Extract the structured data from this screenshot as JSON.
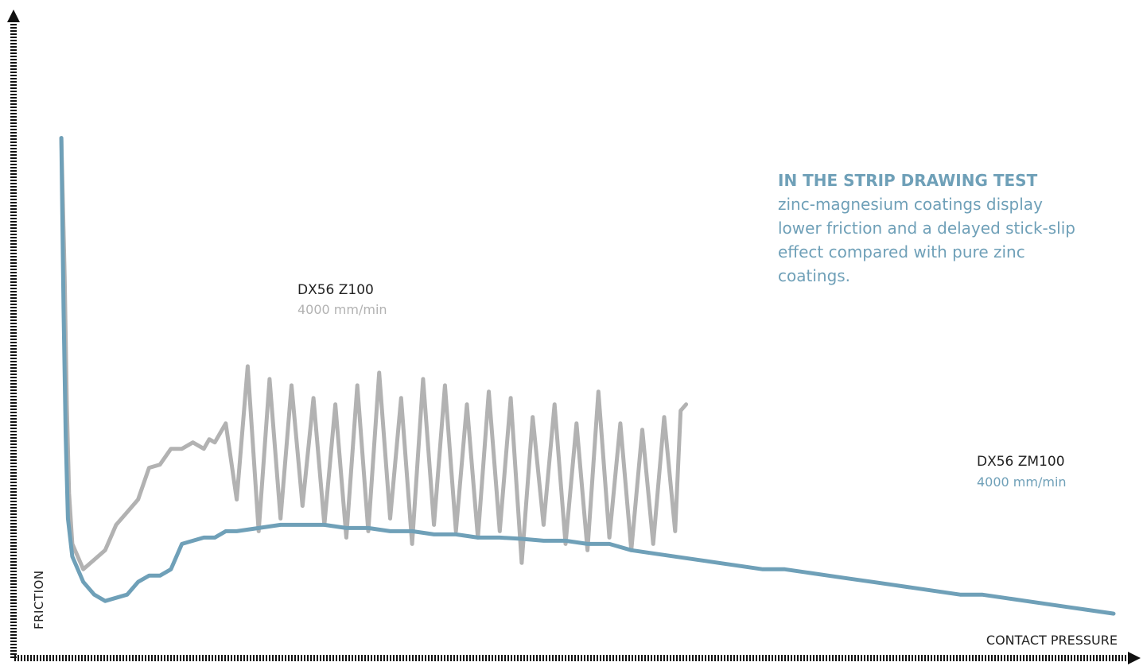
{
  "colors": {
    "zinc": "#b2b2b2",
    "zinc_magnesium": "#6fa0b8",
    "annotation": "#6fa0b8",
    "axis": "#111111"
  },
  "annotation": {
    "title": "IN THE STRIP DRAWING TEST",
    "body": "zinc-magnesium coatings display lower friction and a delayed stick-slip effect compared with pure zinc coatings."
  },
  "chart_data": {
    "type": "line",
    "xlabel": "CONTACT PRESSURE",
    "ylabel": "FRICTION",
    "x_ticks": "none",
    "y_ticks": "none",
    "grid": false,
    "series": [
      {
        "name": "DX56 Z100",
        "speed": "4000 mm/min",
        "color": "#b2b2b2",
        "x": [
          0.04,
          0.043,
          0.045,
          0.047,
          0.05,
          0.06,
          0.07,
          0.08,
          0.09,
          0.1,
          0.11,
          0.12,
          0.13,
          0.14,
          0.15,
          0.16,
          0.17,
          0.175,
          0.18,
          0.19,
          0.2,
          0.21,
          0.22,
          0.23,
          0.24,
          0.25,
          0.26,
          0.27,
          0.28,
          0.29,
          0.3,
          0.31,
          0.32,
          0.33,
          0.34,
          0.35,
          0.36,
          0.37,
          0.38,
          0.39,
          0.4,
          0.41,
          0.42,
          0.43,
          0.44,
          0.45,
          0.46,
          0.47,
          0.48,
          0.49,
          0.5,
          0.51,
          0.52,
          0.53,
          0.54,
          0.55,
          0.56,
          0.57,
          0.58,
          0.59,
          0.6,
          0.605,
          0.61
        ],
        "y": [
          0.82,
          0.6,
          0.4,
          0.26,
          0.18,
          0.14,
          0.155,
          0.17,
          0.21,
          0.23,
          0.25,
          0.3,
          0.305,
          0.33,
          0.33,
          0.34,
          0.33,
          0.345,
          0.34,
          0.37,
          0.25,
          0.46,
          0.2,
          0.44,
          0.22,
          0.43,
          0.24,
          0.41,
          0.21,
          0.4,
          0.19,
          0.43,
          0.2,
          0.45,
          0.22,
          0.41,
          0.18,
          0.44,
          0.21,
          0.43,
          0.2,
          0.4,
          0.19,
          0.42,
          0.2,
          0.41,
          0.15,
          0.38,
          0.21,
          0.4,
          0.18,
          0.37,
          0.17,
          0.42,
          0.19,
          0.37,
          0.17,
          0.36,
          0.18,
          0.38,
          0.2,
          0.39,
          0.4
        ]
      },
      {
        "name": "DX56 ZM100",
        "speed": "4000 mm/min",
        "color": "#6fa0b8",
        "x": [
          0.04,
          0.042,
          0.044,
          0.046,
          0.05,
          0.06,
          0.07,
          0.08,
          0.09,
          0.1,
          0.11,
          0.12,
          0.13,
          0.14,
          0.15,
          0.16,
          0.17,
          0.18,
          0.19,
          0.2,
          0.22,
          0.24,
          0.26,
          0.28,
          0.3,
          0.32,
          0.34,
          0.36,
          0.38,
          0.4,
          0.42,
          0.44,
          0.46,
          0.48,
          0.5,
          0.52,
          0.54,
          0.56,
          0.58,
          0.6,
          0.62,
          0.64,
          0.66,
          0.68,
          0.7,
          0.72,
          0.74,
          0.76,
          0.78,
          0.8,
          0.82,
          0.84,
          0.86,
          0.88,
          0.9,
          0.92,
          0.94,
          0.96,
          0.98,
          1.0
        ],
        "y": [
          0.82,
          0.55,
          0.35,
          0.22,
          0.16,
          0.12,
          0.1,
          0.09,
          0.095,
          0.1,
          0.12,
          0.13,
          0.13,
          0.14,
          0.18,
          0.185,
          0.19,
          0.19,
          0.2,
          0.2,
          0.205,
          0.21,
          0.21,
          0.21,
          0.205,
          0.205,
          0.2,
          0.2,
          0.195,
          0.195,
          0.19,
          0.19,
          0.188,
          0.185,
          0.185,
          0.18,
          0.18,
          0.17,
          0.165,
          0.16,
          0.155,
          0.15,
          0.145,
          0.14,
          0.14,
          0.135,
          0.13,
          0.125,
          0.12,
          0.115,
          0.11,
          0.105,
          0.1,
          0.1,
          0.095,
          0.09,
          0.085,
          0.08,
          0.075,
          0.07
        ]
      }
    ]
  }
}
